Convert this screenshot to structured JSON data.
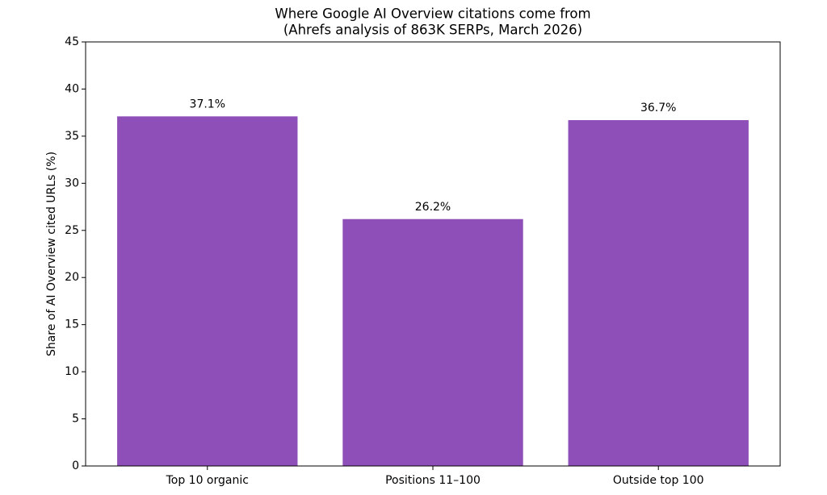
{
  "chart_data": {
    "type": "bar",
    "title": [
      "Where Google AI Overview citations come from",
      "(Ahrefs analysis of 863K SERPs, March 2026)"
    ],
    "ylabel": "Share of AI Overview cited URLs (%)",
    "categories": [
      "Top 10 organic",
      "Positions 11–100",
      "Outside top 100"
    ],
    "values": [
      37.1,
      26.2,
      36.7
    ],
    "value_labels": [
      "37.1%",
      "26.2%",
      "36.7%"
    ],
    "color": "#8e4fb8",
    "ylim": [
      0,
      45
    ],
    "yticks": [
      0,
      5,
      10,
      15,
      20,
      25,
      30,
      35,
      40,
      45
    ],
    "grid": false
  }
}
